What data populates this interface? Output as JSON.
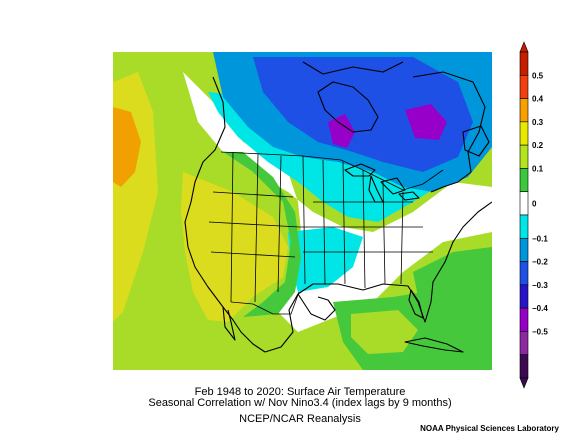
{
  "figure": {
    "title_line1": "Feb 1948 to 2020: Surface Air Temperature",
    "title_line2": "Seasonal Correlation w/ Nov Nino3.4 (index lags by 9 months)",
    "source": "NCEP/NCAR Reanalysis",
    "credit": "NOAA Physical Sciences Laboratory"
  },
  "colorbar": {
    "labels": [
      "0.5",
      "0.4",
      "0.3",
      "0.2",
      "0.1",
      "0",
      "−0.1",
      "−0.2",
      "−0.3",
      "−0.4",
      "−0.5"
    ],
    "colors": [
      "#c81e00",
      "#f04010",
      "#f8a000",
      "#e8e800",
      "#b4e41e",
      "#3cc83c",
      "#ffffff",
      "#00e6e6",
      "#0096dc",
      "#1e50e6",
      "#2814c8",
      "#9600c8",
      "#8c28a0",
      "#3c0a50"
    ]
  },
  "map": {
    "region": "North America",
    "fill_colors": {
      "strong_positive": "#f0a000",
      "positive": "#dcdc1e",
      "weak_positive": "#a8dc28",
      "slight_positive": "#46c83c",
      "neutral": "#ffffff",
      "slight_negative": "#00e6e6",
      "negative": "#0096dc",
      "strong_negative": "#1e50e6",
      "very_strong_negative": "#9600c8"
    }
  }
}
